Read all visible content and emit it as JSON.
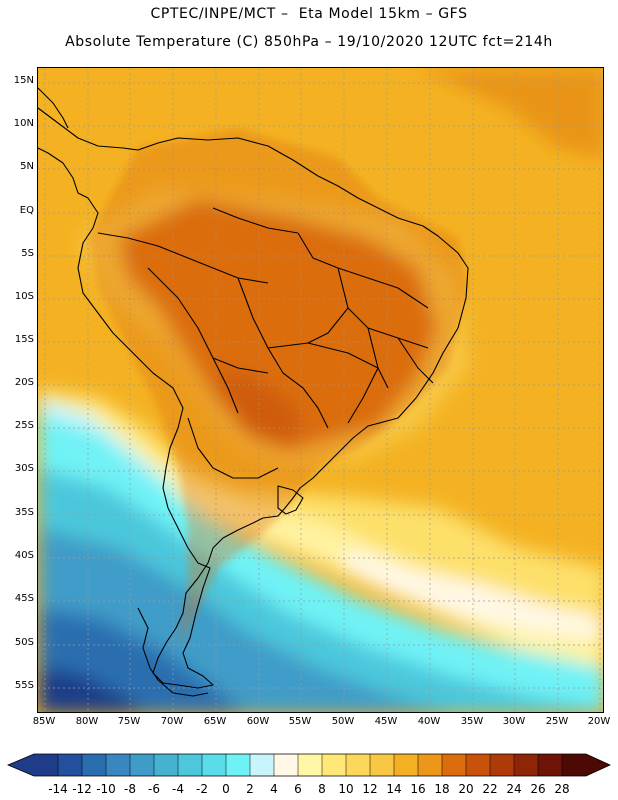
{
  "title_line1": "CPTEC/INPE/MCT –  Eta Model 15km – GFS",
  "title_line2": "Absolute Temperature (C) 850hPa – 19/10/2020 12UTC fct=214h",
  "lat_labels": [
    "15N",
    "10N",
    "5N",
    "EQ",
    "5S",
    "10S",
    "15S",
    "20S",
    "25S",
    "30S",
    "35S",
    "40S",
    "45S",
    "50S",
    "55S"
  ],
  "lon_labels": [
    "85W",
    "80W",
    "75W",
    "70W",
    "65W",
    "60W",
    "55W",
    "50W",
    "45W",
    "40W",
    "35W",
    "30W",
    "25W",
    "20W"
  ],
  "legend_values": [
    "-14",
    "-12",
    "-10",
    "-8",
    "-6",
    "-4",
    "-2",
    "0",
    "2",
    "4",
    "6",
    "8",
    "10",
    "12",
    "14",
    "16",
    "18",
    "20",
    "22",
    "24",
    "26",
    "28"
  ],
  "legend_colors": [
    "#1f3c88",
    "#23509c",
    "#2a6eb0",
    "#3a86c0",
    "#3f9cc8",
    "#45b2d2",
    "#4cc7dc",
    "#5bdcea",
    "#6ff2f6",
    "#c8f4fb",
    "#fff8e6",
    "#fff6a6",
    "#ffe877",
    "#fdd75c",
    "#f8c844",
    "#f2b022",
    "#ec961a",
    "#dc6d0c",
    "#c8520a",
    "#ad3a08",
    "#8e2507",
    "#6e1306",
    "#4d0a04"
  ],
  "field_colors": {
    "ocean_warm": "#f4b222",
    "ocean_hot": "#e99418",
    "interior_hot": "#dc6d0c",
    "interior_hottest": "#c8520a",
    "mid_warm": "#f8c844",
    "yellow": "#fde06a",
    "pale_yellow": "#fff2a0",
    "cream": "#fff8e6",
    "pale_cyan": "#c8f4fb",
    "cyan": "#6ff2f6",
    "teal_light": "#4cc7dc",
    "teal": "#3f9cc8",
    "blue": "#2a6eb0",
    "dark_blue": "#1f3c88",
    "grid_line": "#9a9a9a",
    "coast_line": "#000000"
  }
}
